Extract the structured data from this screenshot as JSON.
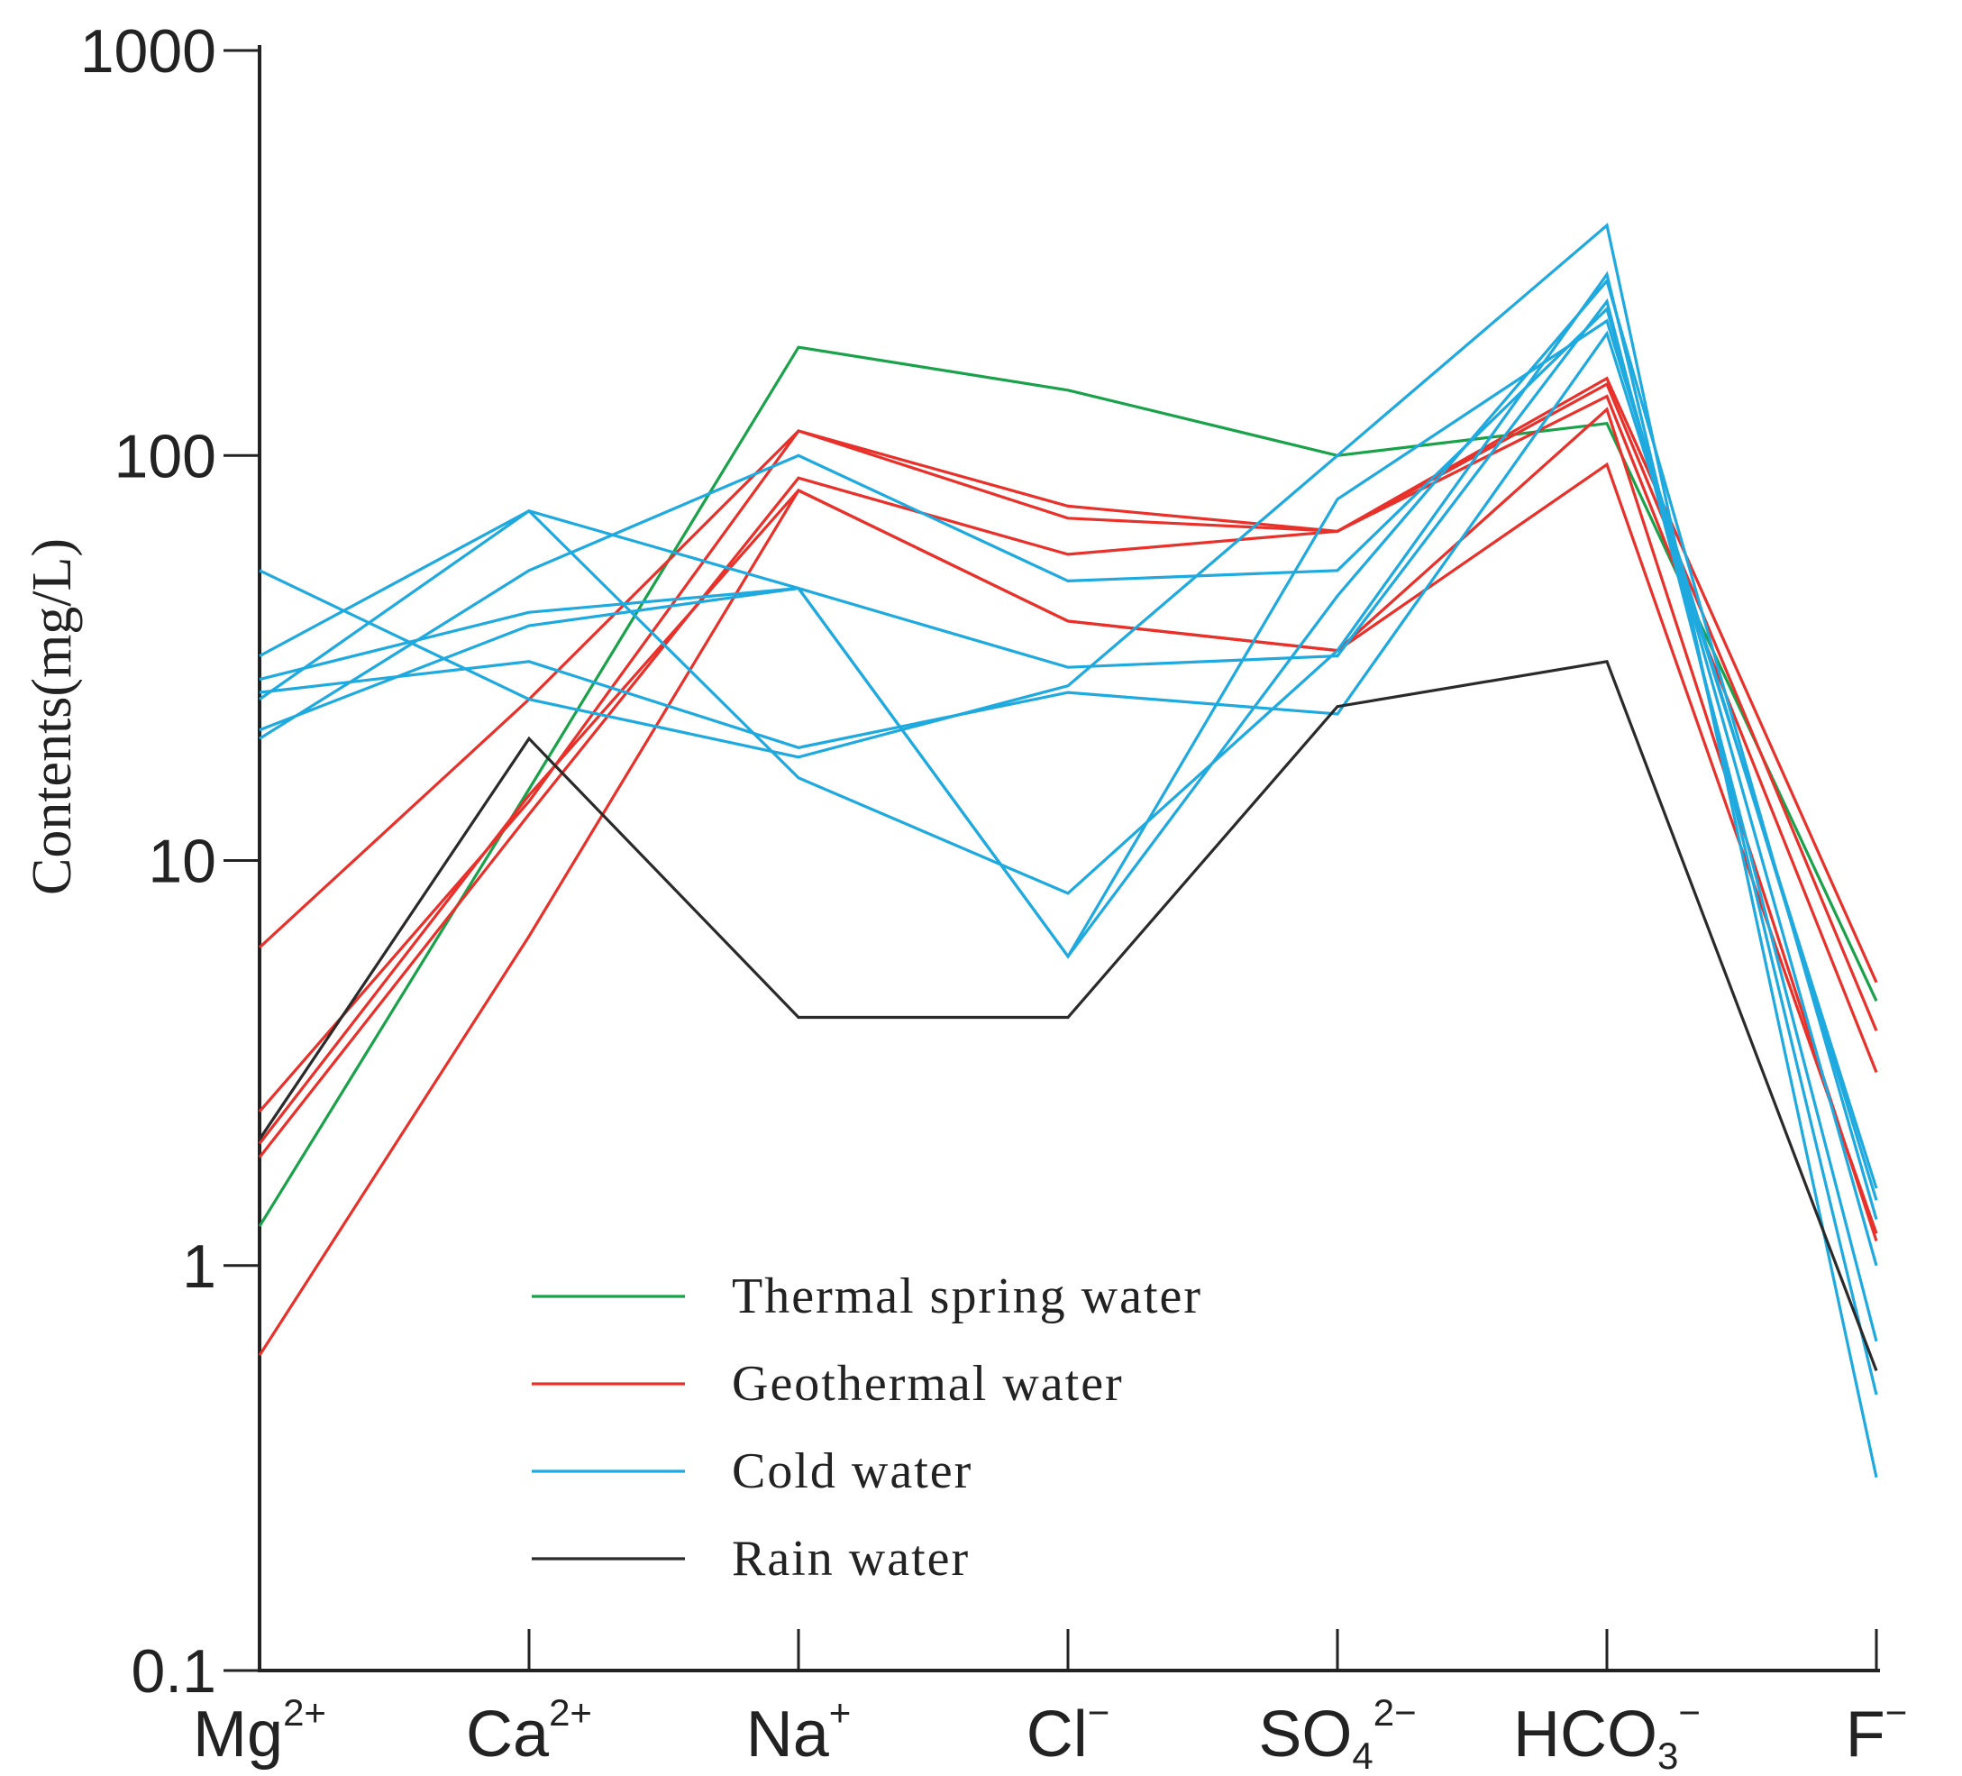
{
  "chart_data": {
    "type": "line",
    "title": "",
    "xlabel": "",
    "ylabel": "Contents(mg/L)",
    "yscale": "log",
    "ylim": [
      0.1,
      1000
    ],
    "yticks": [
      "0.1",
      "1",
      "10",
      "100",
      "1000"
    ],
    "categories": [
      {
        "base": "Mg",
        "sub": "",
        "sup": "2+"
      },
      {
        "base": "Ca",
        "sub": "",
        "sup": "2+"
      },
      {
        "base": "Na",
        "sub": "",
        "sup": "+"
      },
      {
        "base": "Cl",
        "sub": "",
        "sup": "−"
      },
      {
        "base": "SO",
        "sub": "4",
        "sup": "2−"
      },
      {
        "base": "HCO",
        "sub": "3",
        "sup": "−"
      },
      {
        "base": "F",
        "sub": "",
        "sup": "−"
      }
    ],
    "groups": [
      {
        "name": "Thermal spring water",
        "color": "#19a24a",
        "series": [
          [
            1.25,
            15,
            185,
            145,
            100,
            120,
            4.5
          ]
        ]
      },
      {
        "name": "Geothermal water",
        "color": "#e8312a",
        "series": [
          [
            6.1,
            25,
            115,
            75,
            65,
            155,
            5.0
          ],
          [
            2.4,
            14,
            115,
            70,
            65,
            150,
            3.8
          ],
          [
            1.85,
            13,
            88,
            57,
            65,
            140,
            3.0
          ],
          [
            0.6,
            6.5,
            82,
            39,
            33,
            95,
            1.2
          ],
          [
            2.0,
            14.5,
            82,
            39,
            33,
            130,
            1.15
          ]
        ]
      },
      {
        "name": "Cold water",
        "color": "#1ea9df",
        "series": [
          [
            52,
            25,
            18,
            27,
            100,
            370,
            0.3
          ],
          [
            32,
            73,
            16,
            8.3,
            33,
            280,
            0.48
          ],
          [
            25,
            73,
            47,
            30,
            32,
            240,
            0.65
          ],
          [
            20,
            52,
            100,
            49,
            52,
            230,
            1.0
          ],
          [
            28,
            41,
            47,
            5.8,
            45,
            270,
            1.3
          ],
          [
            21,
            38,
            47,
            5.8,
            78,
            215,
            1.45
          ],
          [
            26,
            31,
            19,
            26,
            23,
            200,
            1.55
          ]
        ]
      },
      {
        "name": "Rain water",
        "color": "#2a2a2a",
        "series": [
          [
            2.05,
            20,
            4.1,
            4.1,
            24,
            31,
            0.55
          ]
        ]
      }
    ],
    "legend": {
      "placement": "bottom-center",
      "entries": [
        "Thermal spring water",
        "Geothermal water",
        "Cold water",
        "Rain water"
      ]
    },
    "grid": false
  }
}
